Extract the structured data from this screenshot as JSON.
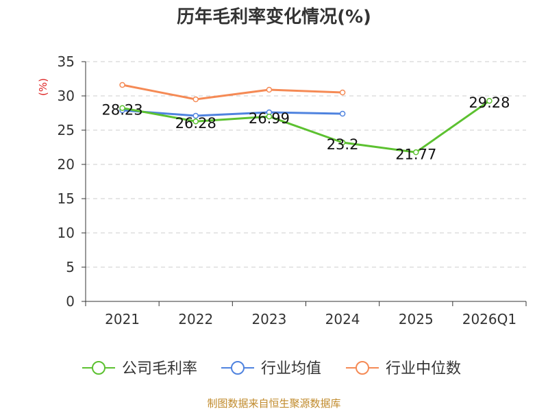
{
  "title": "历年毛利率变化情况(%)",
  "source": "制图数据来自恒生聚源数据库",
  "chart_data": {
    "type": "line",
    "title": "历年毛利率变化情况(%)",
    "ylabel": "(%)",
    "categories": [
      "2021",
      "2022",
      "2023",
      "2024",
      "2025",
      "2026Q1"
    ],
    "ylim": [
      0,
      35
    ],
    "yticks": [
      0,
      5,
      10,
      15,
      20,
      25,
      30,
      35
    ],
    "grid": true,
    "legend_position": "bottom",
    "series": [
      {
        "name": "公司毛利率",
        "color": "#5cc130",
        "values": [
          28.23,
          26.28,
          26.99,
          23.2,
          21.77,
          29.28
        ],
        "labels": [
          "28.23",
          "26.28",
          "26.99",
          "23.2",
          "21.77",
          "29.28"
        ]
      },
      {
        "name": "行业均值",
        "color": "#4f83df",
        "values": [
          27.9,
          27.1,
          27.6,
          27.4,
          null,
          null
        ]
      },
      {
        "name": "行业中位数",
        "color": "#f58a55",
        "values": [
          31.6,
          29.5,
          30.9,
          30.5,
          null,
          null
        ]
      }
    ]
  }
}
